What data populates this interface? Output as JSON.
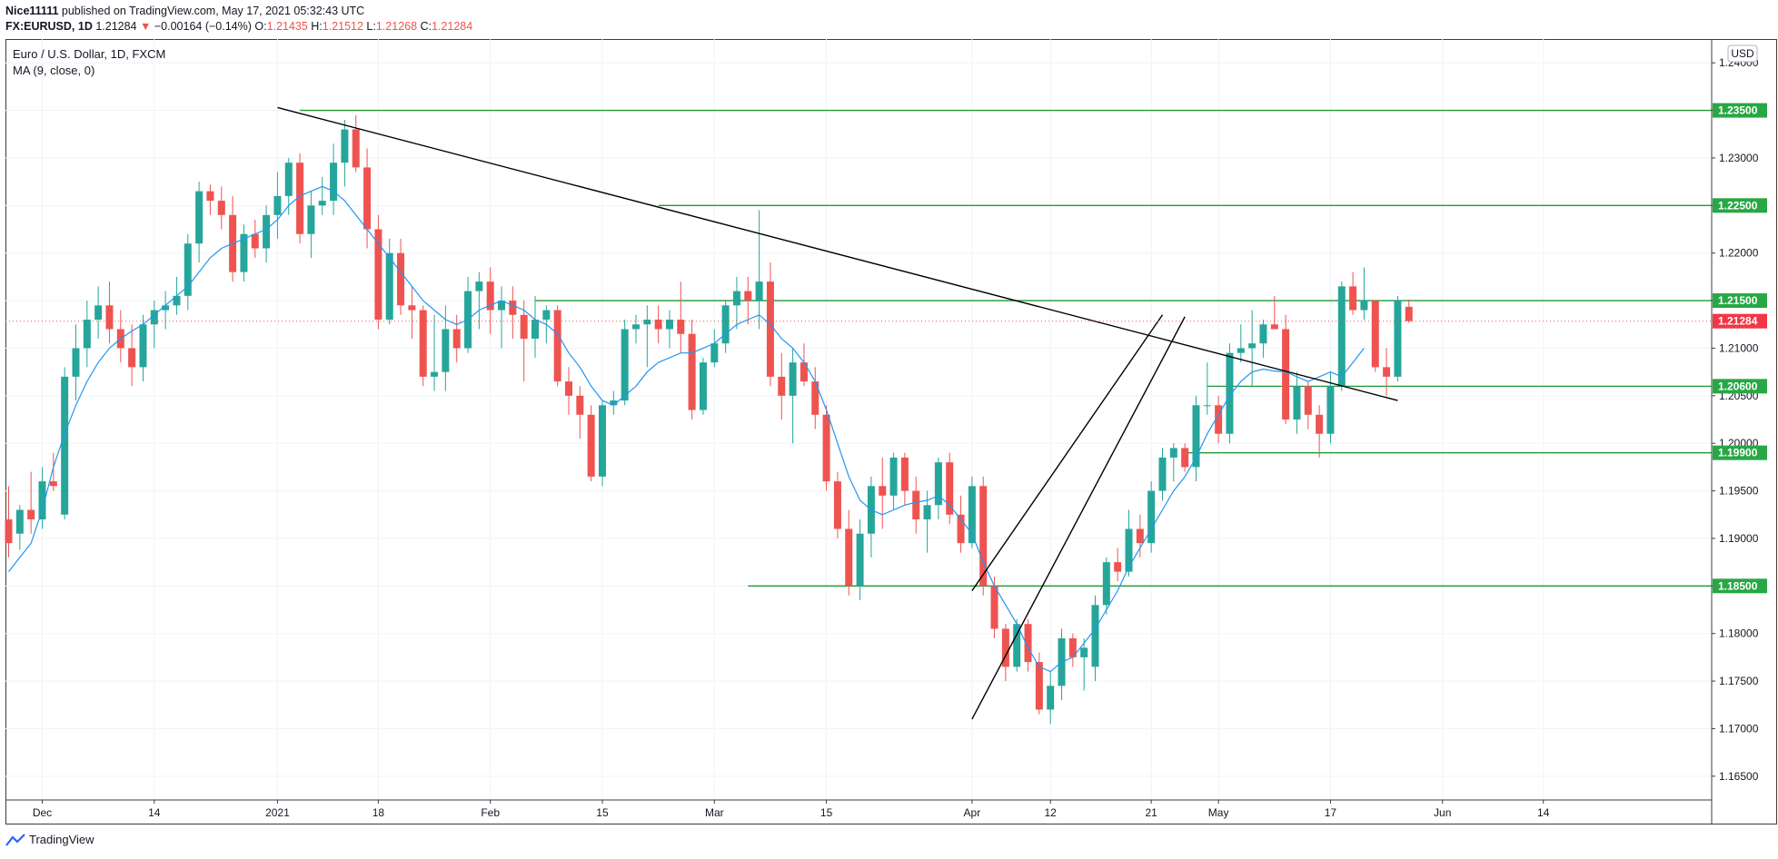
{
  "header": {
    "author": "Nice11111",
    "published": "published on TradingView.com, May 17, 2021 05:32:43 UTC",
    "symbol": "FX:EURUSD, 1D",
    "last": "1.21284",
    "change_arrow": "▼",
    "change": "−0.00164 (−0.14%)",
    "o_label": "O:",
    "o": "1.21435",
    "h_label": "H:",
    "h": "1.21512",
    "l_label": "L:",
    "l": "1.21268",
    "c_label": "C:",
    "c": "1.21284"
  },
  "legend": {
    "title": "Euro / U.S. Dollar, 1D, FXCM",
    "indicator": "MA (9, close, 0)"
  },
  "currency_badge": "USD",
  "footer": {
    "brand": "TradingView",
    "logo_icon": "tradingview-logo-icon"
  },
  "colors": {
    "up": "#26a69a",
    "down": "#ef5350",
    "ma": "#2196f3",
    "level": "#1e9a34",
    "trend": "#000000",
    "price_tag": "#f23645",
    "level_tag": "#28a745"
  },
  "chart_data": {
    "type": "candlestick",
    "title": "Euro / U.S. Dollar, 1D, FXCM",
    "symbol": "EURUSD",
    "timeframe": "1D",
    "ylim": [
      1.1625,
      1.2425
    ],
    "y_ticks": [
      "1.24000",
      "1.23500",
      "1.23000",
      "1.22500",
      "1.22000",
      "1.21500",
      "1.21000",
      "1.20500",
      "1.20000",
      "1.19500",
      "1.19000",
      "1.18500",
      "1.18000",
      "1.17500",
      "1.17000",
      "1.16500"
    ],
    "x_ticks": [
      {
        "label": "Dec",
        "bar": 3
      },
      {
        "label": "14",
        "bar": 13
      },
      {
        "label": "2021",
        "bar": 24
      },
      {
        "label": "18",
        "bar": 33
      },
      {
        "label": "Feb",
        "bar": 43
      },
      {
        "label": "15",
        "bar": 53
      },
      {
        "label": "Mar",
        "bar": 63
      },
      {
        "label": "15",
        "bar": 73
      },
      {
        "label": "Apr",
        "bar": 86
      },
      {
        "label": "12",
        "bar": 93
      },
      {
        "label": "21",
        "bar": 102
      },
      {
        "label": "May",
        "bar": 108
      },
      {
        "label": "17",
        "bar": 118
      },
      {
        "label": "Jun",
        "bar": 128
      },
      {
        "label": "14",
        "bar": 137
      }
    ],
    "last_bar": 119,
    "candles": [
      [
        1.192,
        1.1955,
        1.188,
        1.1895
      ],
      [
        1.1905,
        1.1935,
        1.1888,
        1.193
      ],
      [
        1.193,
        1.197,
        1.1905,
        1.192
      ],
      [
        1.192,
        1.1975,
        1.191,
        1.196
      ],
      [
        1.196,
        1.199,
        1.195,
        1.1955
      ],
      [
        1.1925,
        1.208,
        1.192,
        1.207
      ],
      [
        1.207,
        1.2125,
        1.2045,
        1.21
      ],
      [
        1.21,
        1.215,
        1.208,
        1.213
      ],
      [
        1.213,
        1.2165,
        1.211,
        1.2145
      ],
      [
        1.2145,
        1.217,
        1.2105,
        1.212
      ],
      [
        1.212,
        1.214,
        1.2085,
        1.21
      ],
      [
        1.21,
        1.2125,
        1.206,
        1.208
      ],
      [
        1.208,
        1.2135,
        1.2065,
        1.2125
      ],
      [
        1.2125,
        1.215,
        1.21,
        1.214
      ],
      [
        1.214,
        1.216,
        1.212,
        1.2145
      ],
      [
        1.2145,
        1.2175,
        1.2135,
        1.2155
      ],
      [
        1.2155,
        1.222,
        1.214,
        1.221
      ],
      [
        1.221,
        1.2275,
        1.219,
        1.2265
      ],
      [
        1.2265,
        1.2272,
        1.224,
        1.2255
      ],
      [
        1.2255,
        1.227,
        1.2225,
        1.224
      ],
      [
        1.224,
        1.226,
        1.217,
        1.218
      ],
      [
        1.218,
        1.223,
        1.217,
        1.222
      ],
      [
        1.222,
        1.2235,
        1.2195,
        1.2205
      ],
      [
        1.2205,
        1.225,
        1.219,
        1.224
      ],
      [
        1.224,
        1.2285,
        1.2215,
        1.226
      ],
      [
        1.226,
        1.23,
        1.224,
        1.2295
      ],
      [
        1.2295,
        1.2305,
        1.221,
        1.222
      ],
      [
        1.222,
        1.2265,
        1.2195,
        1.225
      ],
      [
        1.225,
        1.228,
        1.224,
        1.2255
      ],
      [
        1.2255,
        1.2315,
        1.224,
        1.2295
      ],
      [
        1.2295,
        1.234,
        1.227,
        1.233
      ],
      [
        1.233,
        1.2345,
        1.2285,
        1.229
      ],
      [
        1.229,
        1.231,
        1.2205,
        1.2225
      ],
      [
        1.2225,
        1.224,
        1.212,
        1.213
      ],
      [
        1.213,
        1.2215,
        1.2125,
        1.22
      ],
      [
        1.22,
        1.2215,
        1.2135,
        1.2145
      ],
      [
        1.2145,
        1.2165,
        1.211,
        1.214
      ],
      [
        1.214,
        1.2145,
        1.206,
        1.207
      ],
      [
        1.207,
        1.2135,
        1.2055,
        1.2075
      ],
      [
        1.2075,
        1.2145,
        1.2055,
        1.212
      ],
      [
        1.212,
        1.2135,
        1.2085,
        1.21
      ],
      [
        1.21,
        1.2175,
        1.2095,
        1.216
      ],
      [
        1.216,
        1.218,
        1.212,
        1.217
      ],
      [
        1.217,
        1.2185,
        1.2115,
        1.214
      ],
      [
        1.214,
        1.2165,
        1.21,
        1.215
      ],
      [
        1.215,
        1.2165,
        1.211,
        1.2135
      ],
      [
        1.2135,
        1.215,
        1.2065,
        1.211
      ],
      [
        1.211,
        1.2155,
        1.209,
        1.213
      ],
      [
        1.213,
        1.2145,
        1.2105,
        1.214
      ],
      [
        1.214,
        1.2145,
        1.206,
        1.2065
      ],
      [
        1.2065,
        1.208,
        1.203,
        1.205
      ],
      [
        1.205,
        1.206,
        1.2005,
        1.203
      ],
      [
        1.203,
        1.204,
        1.196,
        1.1965
      ],
      [
        1.1965,
        1.2045,
        1.1955,
        1.204
      ],
      [
        1.204,
        1.2055,
        1.203,
        1.2045
      ],
      [
        1.2045,
        1.213,
        1.204,
        1.212
      ],
      [
        1.212,
        1.2135,
        1.2105,
        1.2125
      ],
      [
        1.2125,
        1.2145,
        1.208,
        1.213
      ],
      [
        1.213,
        1.2145,
        1.2105,
        1.212
      ],
      [
        1.212,
        1.214,
        1.21,
        1.213
      ],
      [
        1.213,
        1.217,
        1.2095,
        1.2115
      ],
      [
        1.2115,
        1.213,
        1.2025,
        1.2035
      ],
      [
        1.2035,
        1.209,
        1.203,
        1.2085
      ],
      [
        1.2085,
        1.212,
        1.208,
        1.2105
      ],
      [
        1.2105,
        1.215,
        1.2095,
        1.2145
      ],
      [
        1.2145,
        1.2175,
        1.212,
        1.216
      ],
      [
        1.216,
        1.2175,
        1.2125,
        1.215
      ],
      [
        1.215,
        1.2245,
        1.212,
        1.217
      ],
      [
        1.217,
        1.219,
        1.206,
        1.207
      ],
      [
        1.207,
        1.2095,
        1.2025,
        1.205
      ],
      [
        1.205,
        1.21,
        1.2,
        1.2085
      ],
      [
        1.2085,
        1.2105,
        1.206,
        1.2065
      ],
      [
        1.2065,
        1.208,
        1.2015,
        1.203
      ],
      [
        1.203,
        1.204,
        1.195,
        1.196
      ],
      [
        1.196,
        1.197,
        1.19,
        1.191
      ],
      [
        1.191,
        1.193,
        1.184,
        1.185
      ],
      [
        1.185,
        1.192,
        1.1835,
        1.1905
      ],
      [
        1.1905,
        1.1965,
        1.188,
        1.1955
      ],
      [
        1.1955,
        1.1985,
        1.191,
        1.1945
      ],
      [
        1.1945,
        1.199,
        1.193,
        1.1985
      ],
      [
        1.1985,
        1.199,
        1.1935,
        1.195
      ],
      [
        1.195,
        1.1965,
        1.1905,
        1.192
      ],
      [
        1.192,
        1.195,
        1.1885,
        1.1935
      ],
      [
        1.1935,
        1.1985,
        1.192,
        1.198
      ],
      [
        1.198,
        1.199,
        1.1915,
        1.1925
      ],
      [
        1.1925,
        1.1945,
        1.1885,
        1.1895
      ],
      [
        1.1895,
        1.1965,
        1.189,
        1.1955
      ],
      [
        1.1955,
        1.1965,
        1.184,
        1.185
      ],
      [
        1.185,
        1.186,
        1.1795,
        1.1805
      ],
      [
        1.1805,
        1.181,
        1.175,
        1.1765
      ],
      [
        1.1765,
        1.1815,
        1.176,
        1.181
      ],
      [
        1.181,
        1.1815,
        1.176,
        1.177
      ],
      [
        1.177,
        1.178,
        1.1715,
        1.172
      ],
      [
        1.172,
        1.176,
        1.1705,
        1.1745
      ],
      [
        1.1745,
        1.1805,
        1.173,
        1.1795
      ],
      [
        1.1795,
        1.18,
        1.1765,
        1.1775
      ],
      [
        1.1775,
        1.1795,
        1.174,
        1.1785
      ],
      [
        1.1765,
        1.184,
        1.175,
        1.183
      ],
      [
        1.183,
        1.188,
        1.182,
        1.1875
      ],
      [
        1.1875,
        1.189,
        1.1855,
        1.1865
      ],
      [
        1.1865,
        1.193,
        1.186,
        1.191
      ],
      [
        1.191,
        1.1925,
        1.188,
        1.1895
      ],
      [
        1.1895,
        1.196,
        1.1885,
        1.195
      ],
      [
        1.195,
        1.1995,
        1.194,
        1.1985
      ],
      [
        1.1985,
        1.2,
        1.196,
        1.1995
      ],
      [
        1.1995,
        1.2,
        1.197,
        1.1975
      ],
      [
        1.1975,
        1.205,
        1.196,
        1.204
      ],
      [
        1.204,
        1.2085,
        1.203,
        1.204
      ],
      [
        1.204,
        1.205,
        1.2,
        1.201
      ],
      [
        1.201,
        1.2105,
        1.2,
        1.2095
      ],
      [
        1.2095,
        1.2125,
        1.2085,
        1.21
      ],
      [
        1.21,
        1.214,
        1.206,
        1.2105
      ],
      [
        1.2105,
        1.213,
        1.209,
        1.2125
      ],
      [
        1.2125,
        1.2155,
        1.212,
        1.212
      ],
      [
        1.212,
        1.2135,
        1.202,
        1.2025
      ],
      [
        1.2025,
        1.2075,
        1.201,
        1.206
      ],
      [
        1.206,
        1.2065,
        1.2015,
        1.203
      ],
      [
        1.203,
        1.204,
        1.1985,
        1.201
      ],
      [
        1.201,
        1.2075,
        1.2,
        1.206
      ],
      [
        1.206,
        1.217,
        1.2055,
        1.2165
      ],
      [
        1.2165,
        1.218,
        1.2135,
        1.214
      ],
      [
        1.214,
        1.2185,
        1.213,
        1.215
      ],
      [
        1.215,
        1.215,
        1.2075,
        1.208
      ],
      [
        1.208,
        1.21,
        1.205,
        1.207
      ],
      [
        1.207,
        1.2155,
        1.2065,
        1.215
      ],
      [
        1.21435,
        1.21512,
        1.21268,
        1.21284
      ]
    ],
    "ma": [
      1.1865,
      1.188,
      1.1895,
      1.193,
      1.1975,
      1.201,
      1.204,
      1.2065,
      1.2085,
      1.21,
      1.211,
      1.2118,
      1.2125,
      1.2135,
      1.2145,
      1.2155,
      1.2165,
      1.218,
      1.2195,
      1.2205,
      1.221,
      1.2215,
      1.222,
      1.2225,
      1.2235,
      1.225,
      1.226,
      1.2265,
      1.227,
      1.2265,
      1.2255,
      1.224,
      1.2225,
      1.221,
      1.2195,
      1.218,
      1.2165,
      1.215,
      1.214,
      1.213,
      1.2125,
      1.213,
      1.214,
      1.2145,
      1.215,
      1.2145,
      1.214,
      1.213,
      1.2125,
      1.2115,
      1.2095,
      1.208,
      1.206,
      1.2045,
      1.204,
      1.205,
      1.206,
      1.2075,
      1.2085,
      1.209,
      1.2095,
      1.2095,
      1.21,
      1.2105,
      1.2115,
      1.2125,
      1.213,
      1.2135,
      1.2125,
      1.211,
      1.21,
      1.2085,
      1.2065,
      1.2035,
      1.2,
      1.1965,
      1.194,
      1.193,
      1.1925,
      1.193,
      1.1935,
      1.1938,
      1.194,
      1.1945,
      1.1935,
      1.192,
      1.1905,
      1.1875,
      1.185,
      1.183,
      1.181,
      1.1785,
      1.1765,
      1.176,
      1.177,
      1.1775,
      1.179,
      1.1805,
      1.1825,
      1.1845,
      1.187,
      1.189,
      1.191,
      1.193,
      1.195,
      1.1965,
      1.1985,
      1.201,
      1.203,
      1.205,
      1.2065,
      1.2075,
      1.2078,
      1.2076,
      1.2075,
      1.207,
      1.2065,
      1.207,
      1.2075,
      1.207,
      1.2085,
      1.21
    ],
    "horizontal_levels": [
      {
        "price": 1.235,
        "label": "1.23500",
        "from_bar": 26
      },
      {
        "price": 1.225,
        "label": "1.22500",
        "from_bar": 58
      },
      {
        "price": 1.215,
        "label": "1.21500",
        "from_bar": 47
      },
      {
        "price": 1.206,
        "label": "1.20600",
        "from_bar": 107
      },
      {
        "price": 1.199,
        "label": "1.19900",
        "from_bar": 105
      },
      {
        "price": 1.185,
        "label": "1.18500",
        "from_bar": 66
      }
    ],
    "trendlines": [
      {
        "from": [
          24,
          1.2353
        ],
        "to": [
          124,
          1.2045
        ]
      },
      {
        "from": [
          86,
          1.1845
        ],
        "to": [
          103,
          1.2135
        ]
      },
      {
        "from": [
          86,
          1.171
        ],
        "to": [
          105,
          1.2133
        ]
      }
    ],
    "current_price": {
      "price": 1.21284,
      "label": "1.21284"
    }
  }
}
